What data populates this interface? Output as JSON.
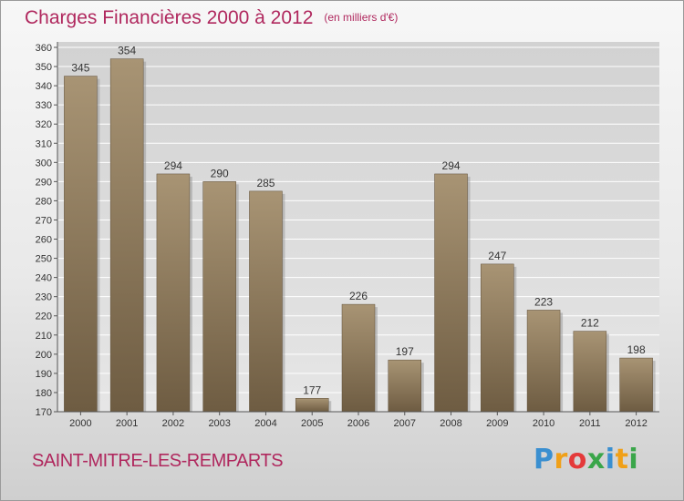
{
  "chart_data": {
    "type": "bar",
    "title": "Charges Financières 2000 à 2012",
    "subtitle": "(en milliers d'€)",
    "categories": [
      "2000",
      "2001",
      "2002",
      "2003",
      "2004",
      "2005",
      "2006",
      "2007",
      "2008",
      "2009",
      "2010",
      "2011",
      "2012"
    ],
    "values": [
      345,
      354,
      294,
      290,
      285,
      177,
      226,
      197,
      294,
      247,
      223,
      212,
      198
    ],
    "ylim": [
      170,
      360
    ],
    "yticks": [
      170,
      180,
      190,
      200,
      210,
      220,
      230,
      240,
      250,
      260,
      270,
      280,
      290,
      300,
      310,
      320,
      330,
      340,
      350,
      360
    ],
    "grid": true,
    "bar_color": "#7d6a4e"
  },
  "footer": {
    "commune": "SAINT-MITRE-LES-REMPARTS",
    "logo_letters": [
      {
        "char": "P",
        "color": "#3a8fd0"
      },
      {
        "char": "r",
        "color": "#f0a018"
      },
      {
        "char": "o",
        "color": "#e43a3a"
      },
      {
        "char": "x",
        "color": "#3aa64a"
      },
      {
        "char": "i",
        "color": "#3a8fd0"
      },
      {
        "char": "t",
        "color": "#f0a018"
      },
      {
        "char": "i",
        "color": "#3aa64a"
      }
    ]
  }
}
